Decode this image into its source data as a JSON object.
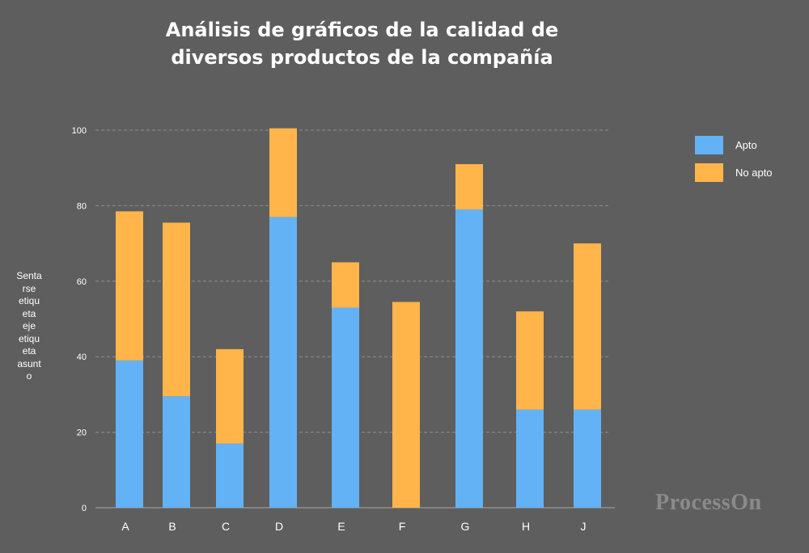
{
  "chart_data": {
    "type": "bar",
    "stacked": true,
    "title_lines": [
      "Análisis de gráficos de la calidad de",
      "diversos productos de la compañía"
    ],
    "ylabel": "Sentarseetiquetaejeetiquetaasunto",
    "ylabel_lines": [
      "Senta",
      "rse",
      "etiqu",
      "eta",
      "eje",
      "etiqu",
      "eta",
      "asunt",
      "o"
    ],
    "categories": [
      "A",
      "B",
      "C",
      "D",
      "E",
      "F",
      "G",
      "H",
      "J"
    ],
    "series": [
      {
        "name": "Apto",
        "color": "#63b2f5",
        "values": [
          39,
          29.5,
          17,
          77,
          53,
          0,
          79,
          26,
          26
        ]
      },
      {
        "name": "No apto",
        "color": "#ffb54a",
        "values": [
          39.5,
          46,
          25,
          23.5,
          12,
          54.5,
          12,
          26,
          44
        ]
      }
    ],
    "yticks": [
      0,
      20,
      40,
      60,
      80,
      100
    ],
    "ylim": [
      0,
      100
    ],
    "grid": true,
    "legend_position": "right"
  },
  "watermark": "ProcessOn"
}
